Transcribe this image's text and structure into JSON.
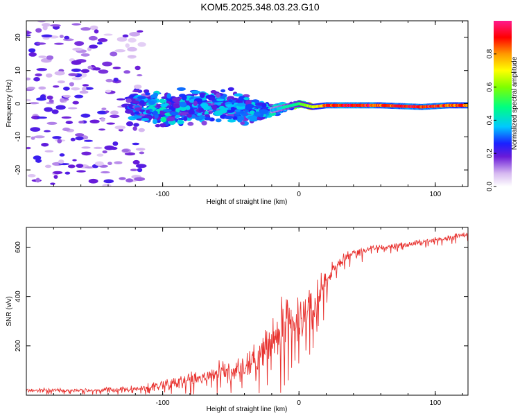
{
  "title": "KOM5.2025.348.03.23.G10",
  "chart_data": [
    {
      "type": "heatmap",
      "xlabel": "Height of straight line (km)",
      "ylabel": "Frequency (Hz)",
      "xlim": [
        -200,
        124
      ],
      "ylim": [
        -25,
        25
      ],
      "xticks": [
        -100,
        0,
        100
      ],
      "yticks": [
        -20,
        -10,
        0,
        10,
        20
      ],
      "colorbar": {
        "label": "Normalized spectral amplitude",
        "ticks": [
          "0.0",
          "0.2",
          "0.4",
          "0.6",
          "0.8"
        ],
        "range": [
          0,
          1
        ]
      },
      "ridge": [
        {
          "x": -200,
          "f": 0,
          "spread": 15,
          "amp": 0.1
        },
        {
          "x": -150,
          "f": 0,
          "spread": 12,
          "amp": 0.15
        },
        {
          "x": -120,
          "f": -1,
          "spread": 6,
          "amp": 0.28
        },
        {
          "x": -100,
          "f": -2,
          "spread": 5,
          "amp": 0.35
        },
        {
          "x": -80,
          "f": -1,
          "spread": 5,
          "amp": 0.3
        },
        {
          "x": -60,
          "f": 0,
          "spread": 5,
          "amp": 0.3
        },
        {
          "x": -40,
          "f": -2,
          "spread": 4,
          "amp": 0.3
        },
        {
          "x": -20,
          "f": -2,
          "spread": 2,
          "amp": 0.35
        },
        {
          "x": -10,
          "f": -1,
          "spread": 1,
          "amp": 0.45
        },
        {
          "x": 0,
          "f": 0,
          "spread": 0.8,
          "amp": 0.55
        },
        {
          "x": 10,
          "f": -1,
          "spread": 0.5,
          "amp": 0.7
        },
        {
          "x": 20,
          "f": -0.5,
          "spread": 0.4,
          "amp": 0.9
        },
        {
          "x": 40,
          "f": -0.5,
          "spread": 0.4,
          "amp": 1.0
        },
        {
          "x": 60,
          "f": -0.5,
          "spread": 0.4,
          "amp": 0.9
        },
        {
          "x": 90,
          "f": -1,
          "spread": 0.4,
          "amp": 0.95
        },
        {
          "x": 110,
          "f": -0.5,
          "spread": 0.4,
          "amp": 0.9
        },
        {
          "x": 124,
          "f": -0.5,
          "spread": 0.4,
          "amp": 0.85
        }
      ]
    },
    {
      "type": "line",
      "xlabel": "Height of straight line (km)",
      "ylabel": "SNR (v/v)",
      "xlim": [
        -200,
        124
      ],
      "ylim": [
        0,
        680
      ],
      "xticks": [
        -100,
        0,
        100
      ],
      "yticks": [
        200,
        400,
        600
      ],
      "series": [
        {
          "name": "SNR",
          "color": "#e8322f",
          "x": [
            -200,
            -150,
            -120,
            -100,
            -80,
            -60,
            -40,
            -30,
            -20,
            -10,
            -5,
            0,
            10,
            20,
            30,
            40,
            60,
            80,
            100,
            124
          ],
          "values": [
            20,
            20,
            25,
            45,
            65,
            90,
            120,
            160,
            210,
            260,
            270,
            300,
            360,
            470,
            540,
            580,
            600,
            610,
            630,
            655
          ],
          "noise": [
            10,
            10,
            15,
            25,
            35,
            50,
            70,
            90,
            130,
            150,
            150,
            130,
            100,
            50,
            25,
            20,
            15,
            15,
            15,
            15
          ]
        }
      ]
    }
  ]
}
